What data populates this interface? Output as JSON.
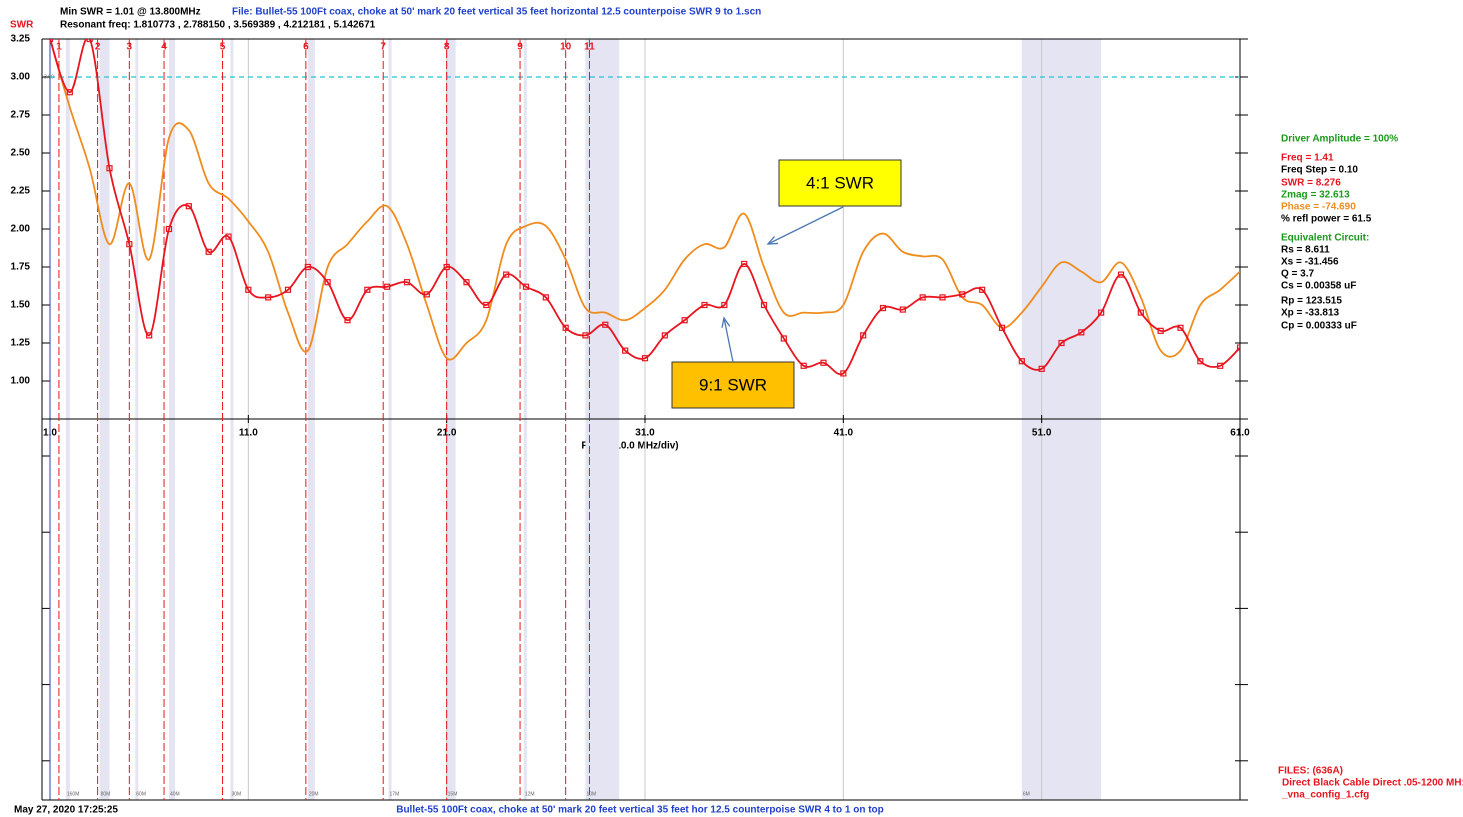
{
  "chart_data": {
    "type": "line",
    "header": {
      "min_swr": "Min SWR =   1.01 @  13.800MHz",
      "file": "File: Bullet-55 100Ft coax, choke at 50' mark 20 feet vertical 35 feet horizontal 12.5 counterpoise SWR 9 to 1.scn",
      "axis_name": "SWR",
      "resonant": "Resonant freq:  1.810773 , 2.788150 , 3.569389 , 4.212181 , 5.142671"
    },
    "xlabel": "FREQ (10.0 MHz/div)",
    "xlim": [
      1,
      61
    ],
    "ylim": [
      0.75,
      3.25
    ],
    "xticks": [
      {
        "value": 1,
        "label": "1.0"
      },
      {
        "value": 11,
        "label": "11.0"
      },
      {
        "value": 21,
        "label": "21.0"
      },
      {
        "value": 31,
        "label": "31.0"
      },
      {
        "value": 41,
        "label": "41.0"
      },
      {
        "value": 51,
        "label": "51.0"
      },
      {
        "value": 61,
        "label": "61.0"
      }
    ],
    "yticks": [
      3.25,
      {
        "value": 3,
        "label": "3.00"
      },
      2.75,
      {
        "value": 2.5,
        "label": "2.50"
      },
      2.25,
      {
        "value": 2,
        "label": "2.00"
      },
      1.75,
      {
        "value": 1.5,
        "label": "1.50"
      },
      1.25,
      {
        "value": 1,
        "label": "1.00"
      }
    ],
    "grid": true,
    "reference_line": {
      "value": 3,
      "label": "3.00",
      "color": "#22c4d8"
    },
    "x": [
      1,
      2,
      3,
      4,
      5,
      6,
      7,
      8,
      9,
      10,
      11,
      12,
      13,
      14,
      15,
      16,
      17,
      18,
      19,
      20,
      21,
      22,
      23,
      24,
      25,
      26,
      27,
      28,
      29,
      30,
      31,
      32,
      33,
      34,
      35,
      36,
      37,
      38,
      39,
      40,
      41,
      42,
      43,
      44,
      45,
      46,
      47,
      48,
      49,
      50,
      51,
      52,
      53,
      54,
      55,
      56,
      57,
      58,
      59,
      60,
      61
    ],
    "series": [
      {
        "name": "4:1 SWR",
        "color": "#f08c1e",
        "box_color": "#ffff00",
        "values": [
          3.25,
          2.8,
          2.4,
          1.9,
          2.3,
          1.8,
          2.6,
          2.65,
          2.3,
          2.2,
          2.05,
          1.85,
          1.45,
          1.2,
          1.75,
          1.9,
          2.05,
          2.15,
          1.9,
          1.5,
          1.15,
          1.25,
          1.4,
          1.9,
          2.02,
          2.02,
          1.8,
          1.48,
          1.45,
          1.4,
          1.48,
          1.6,
          1.8,
          1.9,
          1.88,
          2.1,
          1.75,
          1.45,
          1.45,
          1.45,
          1.5,
          1.85,
          1.97,
          1.85,
          1.82,
          1.8,
          1.55,
          1.5,
          1.35,
          1.45,
          1.62,
          1.78,
          1.72,
          1.65,
          1.78,
          1.55,
          1.2,
          1.2,
          1.5,
          1.6,
          1.72
        ]
      },
      {
        "name": "9:1 SWR",
        "color": "#e8141e",
        "box_color": "#ffc000",
        "values": [
          3.25,
          2.9,
          3.25,
          2.4,
          1.9,
          1.3,
          2.0,
          2.15,
          1.85,
          1.95,
          1.6,
          1.55,
          1.6,
          1.75,
          1.65,
          1.4,
          1.6,
          1.62,
          1.65,
          1.57,
          1.75,
          1.65,
          1.5,
          1.7,
          1.62,
          1.55,
          1.35,
          1.3,
          1.37,
          1.2,
          1.15,
          1.3,
          1.4,
          1.5,
          1.5,
          1.77,
          1.5,
          1.28,
          1.1,
          1.12,
          1.05,
          1.3,
          1.48,
          1.47,
          1.55,
          1.55,
          1.57,
          1.6,
          1.35,
          1.13,
          1.08,
          1.25,
          1.32,
          1.45,
          1.7,
          1.45,
          1.33,
          1.35,
          1.13,
          1.1,
          1.22
        ]
      }
    ],
    "markers": {
      "labels": [
        "1",
        "2",
        "3",
        "4",
        "5",
        "6",
        "7",
        "8",
        "9",
        "10",
        "11"
      ],
      "x": [
        1.45,
        3.4,
        5.0,
        6.75,
        9.7,
        13.9,
        17.8,
        21.0,
        24.7,
        27.0,
        28.2
      ],
      "color": "#e8141e"
    },
    "bands": {
      "labels": [
        "160M",
        "80M",
        "60M",
        "40M",
        "30M",
        "20M",
        "17M",
        "15M",
        "12M",
        "10M",
        "6M"
      ],
      "ranges": [
        [
          1.8,
          2.0
        ],
        [
          3.5,
          4.0
        ],
        [
          5.3,
          5.4
        ],
        [
          7.0,
          7.3
        ],
        [
          10.1,
          10.15
        ],
        [
          14.0,
          14.35
        ],
        [
          18.07,
          18.17
        ],
        [
          21.0,
          21.45
        ],
        [
          24.89,
          24.99
        ],
        [
          28.0,
          29.7
        ],
        [
          50.0,
          54.0
        ]
      ]
    },
    "panel": [
      {
        "text": "Driver Amplitude = 100%",
        "color": "#1a9a1a"
      },
      {
        "text": "Freq = 1.41",
        "color": "#e8141e"
      },
      {
        "text": "Freq Step = 0.10",
        "color": "#000000"
      },
      {
        "text": "SWR  =  8.276",
        "color": "#e8141e"
      },
      {
        "text": "Zmag =  32.613",
        "color": "#1a9a1a"
      },
      {
        "text": "Phase =  -74.690",
        "color": "#f08c1e"
      },
      {
        "text": "% refl power = 61.5",
        "color": "#000000"
      },
      {
        "text": "Equivalent Circuit:",
        "color": "#1a9a1a"
      },
      {
        "text": "Rs =   8.611",
        "color": "#000000"
      },
      {
        "text": "Xs =  -31.456",
        "color": "#000000"
      },
      {
        "text": "Q =  3.7",
        "color": "#000000"
      },
      {
        "text": "Cs =   0.00358  uF",
        "color": "#000000"
      },
      {
        "text": "Rp =  123.515",
        "color": "#000000"
      },
      {
        "text": "Xp =  -33.813",
        "color": "#000000"
      },
      {
        "text": "Cp =   0.00333  uF",
        "color": "#000000"
      }
    ],
    "files": [
      "FILES: (636A)",
      "Direct Black Cable Direct .05-1200 MH:",
      "_vna_config_1.cfg"
    ],
    "footer": {
      "date": "May 27, 2020  17:25:25",
      "note": "Bullet-55 100Ft coax, choke at 50' mark 20 feet vertical 35 feet hor 12.5 counterpoise SWR 4 to 1 on top"
    }
  }
}
